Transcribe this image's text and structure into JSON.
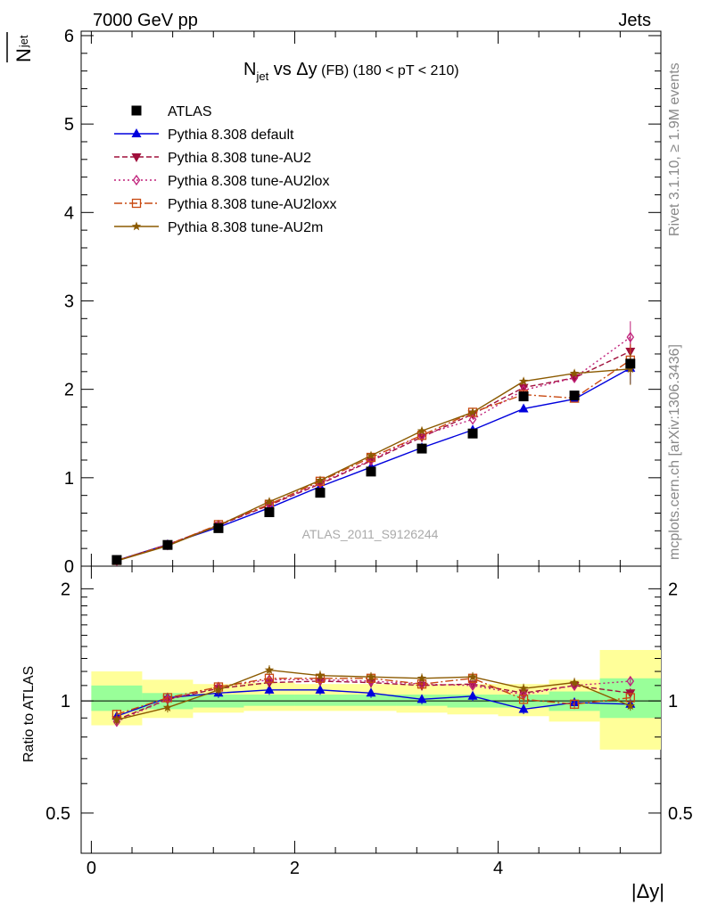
{
  "header": {
    "left": "7000 GeV pp",
    "right": "Jets"
  },
  "side_text": {
    "upper": "Rivet 3.1.10, ≥ 1.9M events",
    "lower": "mcplots.cern.ch [arXiv:1306.3436]"
  },
  "watermark": "ATLAS_2011_S9126244",
  "title": {
    "main": "N",
    "main_sub": "jet",
    "vs": " vs Δy",
    "fb": " (FB)",
    "range": " (180 < pT < 210)"
  },
  "ylabel": {
    "text": "N",
    "sub": "jet"
  },
  "ratio_ylabel": "Ratio to ATLAS",
  "xlabel": "|Δy|",
  "chart_data": {
    "type": "line",
    "x": [
      0.25,
      0.75,
      1.25,
      1.75,
      2.25,
      2.75,
      3.25,
      3.75,
      4.25,
      4.75,
      5.3
    ],
    "x_edges": [
      0,
      0.5,
      1.0,
      1.5,
      2.0,
      2.5,
      3.0,
      3.5,
      4.0,
      4.5,
      5.0,
      5.6
    ],
    "xlim": [
      -0.1,
      5.6
    ],
    "ylim": [
      0,
      6.05
    ],
    "ratio_ylim": [
      0.39,
      2.3
    ],
    "ratio_scale": "log",
    "xticks": [
      "0",
      "2",
      "4"
    ],
    "yticks": [
      "0",
      "1",
      "2",
      "3",
      "4",
      "5",
      "6"
    ],
    "ratio_yticks": [
      "0.5",
      "1",
      "2"
    ],
    "series": [
      {
        "name": "ATLAS",
        "kind": "data",
        "color": "#000000",
        "marker": "square",
        "values": [
          0.07,
          0.24,
          0.43,
          0.61,
          0.83,
          1.07,
          1.33,
          1.5,
          1.92,
          1.93,
          2.29
        ]
      },
      {
        "name": "Pythia 8.308 default",
        "color": "#0000dd",
        "marker": "triangle-up",
        "dash": "",
        "values": [
          0.065,
          0.245,
          0.44,
          0.66,
          0.9,
          1.12,
          1.34,
          1.54,
          1.78,
          1.89,
          2.24
        ],
        "ratio": [
          0.91,
          1.02,
          1.05,
          1.07,
          1.07,
          1.05,
          1.01,
          1.03,
          0.95,
          0.99,
          0.98
        ]
      },
      {
        "name": "Pythia 8.308 tune-AU2",
        "color": "#a0103c",
        "marker": "triangle-down",
        "dash": "6,3",
        "values": [
          0.062,
          0.245,
          0.46,
          0.69,
          0.93,
          1.19,
          1.46,
          1.72,
          2.02,
          2.13,
          2.43
        ],
        "ratio": [
          0.89,
          1.01,
          1.08,
          1.12,
          1.13,
          1.12,
          1.1,
          1.11,
          1.05,
          1.1,
          1.05
        ]
      },
      {
        "name": "Pythia 8.308 tune-AU2lox",
        "color": "#c0207a",
        "marker": "diamond-open",
        "dash": "2,3",
        "values": [
          0.062,
          0.24,
          0.465,
          0.7,
          0.94,
          1.2,
          1.48,
          1.66,
          1.99,
          2.13,
          2.59
        ],
        "ratio": [
          0.88,
          1.01,
          1.09,
          1.14,
          1.14,
          1.13,
          1.11,
          1.1,
          1.04,
          1.1,
          1.13
        ]
      },
      {
        "name": "Pythia 8.308 tune-AU2loxx",
        "color": "#c84810",
        "marker": "square-open",
        "dash": "9,3,2,3",
        "values": [
          0.065,
          0.24,
          0.47,
          0.7,
          0.96,
          1.23,
          1.48,
          1.74,
          1.94,
          1.9,
          2.33
        ],
        "ratio": [
          0.92,
          1.02,
          1.09,
          1.15,
          1.15,
          1.15,
          1.11,
          1.15,
          1.01,
          0.98,
          1.02
        ]
      },
      {
        "name": "Pythia 8.308 tune-AU2m",
        "color": "#8b5a00",
        "marker": "star",
        "dash": "",
        "values": [
          0.06,
          0.23,
          0.46,
          0.73,
          0.97,
          1.25,
          1.53,
          1.74,
          2.09,
          2.18,
          2.23
        ],
        "ratio": [
          0.89,
          0.96,
          1.07,
          1.21,
          1.17,
          1.16,
          1.15,
          1.16,
          1.08,
          1.12,
          0.97
        ]
      }
    ],
    "bands": {
      "yellow": [
        [
          0.86,
          1.2
        ],
        [
          0.9,
          1.14
        ],
        [
          0.93,
          1.11
        ],
        [
          0.94,
          1.12
        ],
        [
          0.94,
          1.11
        ],
        [
          0.94,
          1.11
        ],
        [
          0.93,
          1.11
        ],
        [
          0.92,
          1.11
        ],
        [
          0.91,
          1.11
        ],
        [
          0.88,
          1.14
        ],
        [
          0.74,
          1.37
        ]
      ],
      "green": [
        [
          0.94,
          1.1
        ],
        [
          0.95,
          1.05
        ],
        [
          0.96,
          1.04
        ],
        [
          0.97,
          1.04
        ],
        [
          0.97,
          1.04
        ],
        [
          0.97,
          1.04
        ],
        [
          0.97,
          1.04
        ],
        [
          0.96,
          1.04
        ],
        [
          0.96,
          1.04
        ],
        [
          0.94,
          1.06
        ],
        [
          0.9,
          1.15
        ]
      ]
    },
    "colors": {
      "band_yellow": "#ffff99",
      "band_green": "#99ff99"
    }
  }
}
